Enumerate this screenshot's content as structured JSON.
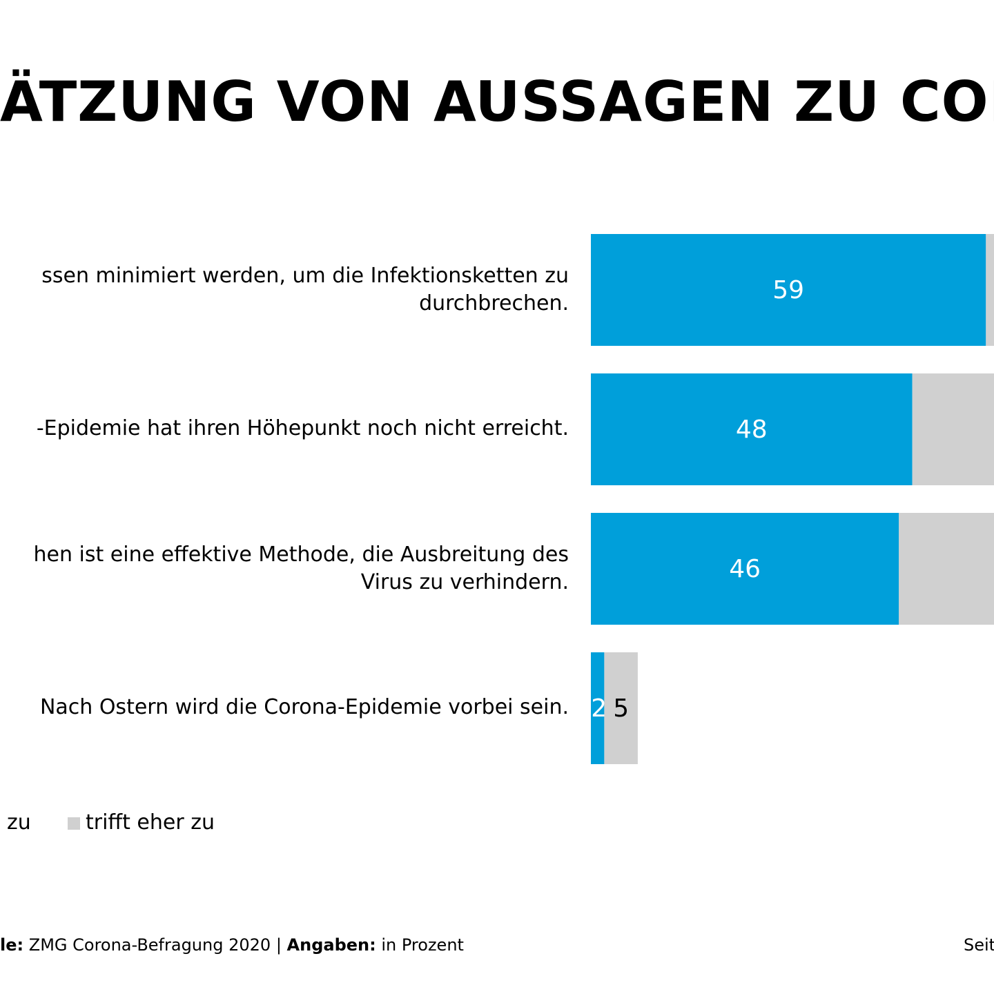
{
  "title": "ÄTZUNG VON AUSSAGEN ZU CORON",
  "statements": [
    {
      "line1": "ssen minimiert werden, um die Infektionsketten zu",
      "line2": "durchbrechen."
    },
    {
      "line1": "-Epidemie hat ihren Höhepunkt noch nicht erreicht.",
      "line2": ""
    },
    {
      "line1": "hen ist eine effektive Methode, die Ausbreitung des",
      "line2": "Virus zu verhindern."
    },
    {
      "line1": "Nach Ostern wird die Corona-Epidemie vorbei sein.",
      "line2": ""
    }
  ],
  "legend": {
    "series1_label": "zu",
    "series2_label": "trifft eher zu"
  },
  "footer": {
    "source_label": "le:",
    "source_value": "ZMG Corona-Befragung 2020",
    "separator": "|",
    "unit_label": "Angaben:",
    "unit_value": "in Prozent",
    "page_label": "Seit"
  },
  "colors": {
    "series1": "#009fda",
    "series2": "#d0d0d0"
  },
  "chart_data": {
    "type": "bar",
    "orientation": "horizontal",
    "stacked": true,
    "title": "ÄTZUNG VON AUSSAGEN ZU CORON",
    "categories": [
      "ssen minimiert werden, um die Infektionsketten zu durchbrechen.",
      "-Epidemie hat ihren Höhepunkt noch nicht erreicht.",
      "hen ist eine effektive Methode, die Ausbreitung des Virus zu verhindern.",
      "Nach Ostern wird die Corona-Epidemie vorbei sein."
    ],
    "series": [
      {
        "name": "zu",
        "values": [
          59,
          48,
          46,
          2
        ],
        "labels": [
          "59",
          "48",
          "46",
          "2"
        ]
      },
      {
        "name": "trifft eher zu",
        "values": [
          null,
          null,
          null,
          5
        ],
        "labels": [
          "",
          "",
          "",
          "5"
        ]
      }
    ],
    "xlabel": "",
    "ylabel": "",
    "unit": "in Prozent",
    "grid": false,
    "legend_position": "bottom-left"
  }
}
